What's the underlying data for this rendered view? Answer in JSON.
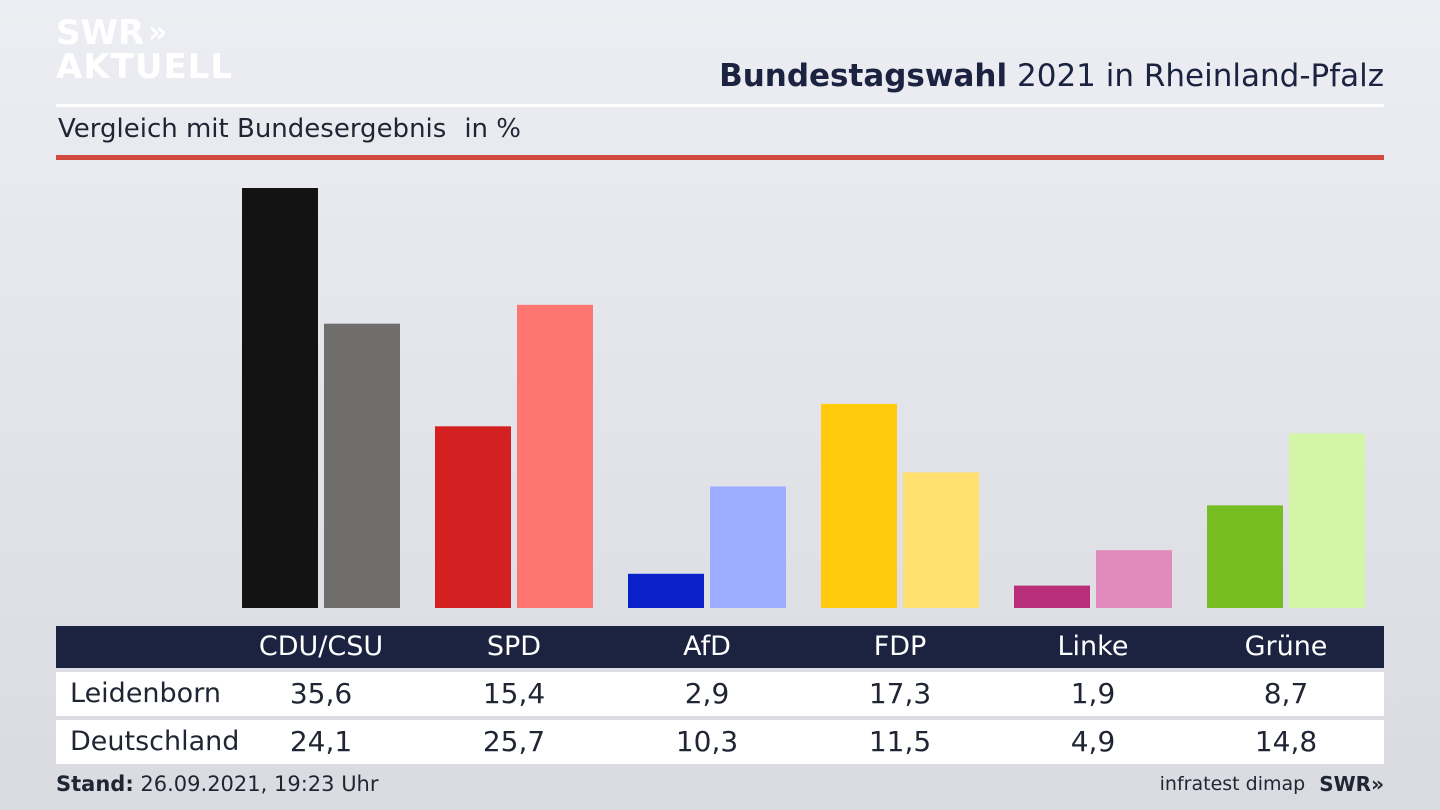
{
  "logo": {
    "line1": "SWR",
    "line2": "AKTUELL",
    "chevrons": "»"
  },
  "header": {
    "title_bold": "Bundestagswahl",
    "title_rest": "2021 in Rheinland-Pfalz",
    "subtitle": "Vergleich mit Bundesergebnis",
    "unit": "in %"
  },
  "chart_data": {
    "type": "bar",
    "categories": [
      "CDU/CSU",
      "SPD",
      "AfD",
      "FDP",
      "Linke",
      "Grüne"
    ],
    "series": [
      {
        "name": "Leidenborn",
        "values": [
          35.6,
          15.4,
          2.9,
          17.3,
          1.9,
          8.7
        ],
        "display": [
          "35,6",
          "15,4",
          "2,9",
          "17,3",
          "1,9",
          "8,7"
        ]
      },
      {
        "name": "Deutschland",
        "values": [
          24.1,
          25.7,
          10.3,
          11.5,
          4.9,
          14.8
        ],
        "display": [
          "24,1",
          "25,7",
          "10,3",
          "11,5",
          "4,9",
          "14,8"
        ]
      }
    ],
    "colors": {
      "local": [
        "#131313",
        "#d42020",
        "#0a20c8",
        "#ffcb0c",
        "#b82e78",
        "#76bd22"
      ],
      "national": [
        "#6f6e6c",
        "#ff7570",
        "#9eadff",
        "#ffe070",
        "#e08bbb",
        "#d3f5a6"
      ]
    },
    "ylim": [
      0,
      36
    ],
    "grid": false,
    "legend": "table below chart"
  },
  "footer": {
    "stand_label": "Stand:",
    "stand_value": "26.09.2021, 19:23 Uhr",
    "source": "infratest dimap",
    "brand": "SWR»"
  }
}
